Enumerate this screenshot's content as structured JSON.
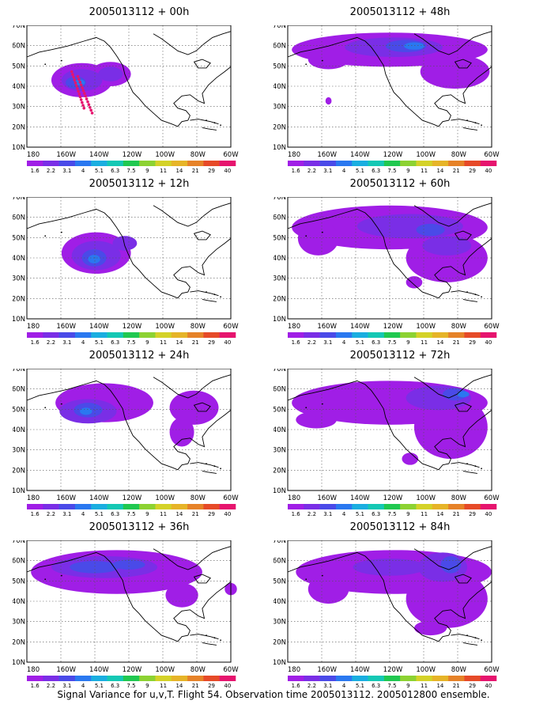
{
  "caption": "Signal Variance for u,v,T. Flight 54. Observation time 2005013112. 2005012800 ensemble.",
  "axes": {
    "lat_labels": [
      "70N",
      "60N",
      "50N",
      "40N",
      "30N",
      "20N",
      "10N"
    ],
    "lon_labels": [
      "180",
      "160W",
      "140W",
      "120W",
      "100W",
      "80W",
      "60W"
    ]
  },
  "colorbar": {
    "labels": [
      "1.6",
      "2.2",
      "3.1",
      "4",
      "5.1",
      "6.3",
      "7.5",
      "9",
      "11",
      "14",
      "21",
      "29",
      "40"
    ],
    "colors": [
      "#a01ee6",
      "#7a2ee6",
      "#4a4ae8",
      "#2a78f0",
      "#1aaee0",
      "#14c8b4",
      "#20c850",
      "#8cd232",
      "#d4d228",
      "#e6b428",
      "#e68228",
      "#e64a28",
      "#e6146e"
    ]
  },
  "panels": [
    {
      "title": "2005013112 + 00h"
    },
    {
      "title": "2005013112 + 48h"
    },
    {
      "title": "2005013112 + 12h"
    },
    {
      "title": "2005013112 + 60h"
    },
    {
      "title": "2005013112 + 24h"
    },
    {
      "title": "2005013112 + 72h"
    },
    {
      "title": "2005013112 + 36h"
    },
    {
      "title": "2005013112 + 84h"
    }
  ]
}
